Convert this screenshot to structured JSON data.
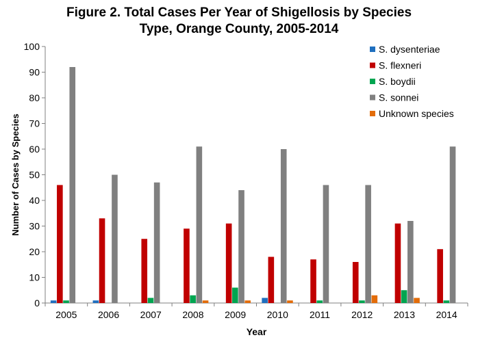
{
  "chart_data": {
    "type": "bar",
    "title": [
      "Figure 2.  Total Cases Per Year of Shigellosis by Species",
      "Type, Orange County, 2005-2014"
    ],
    "xlabel": "Year",
    "ylabel": "Number of Cases by Species",
    "ylim": [
      0,
      100
    ],
    "yticks": [
      0,
      10,
      20,
      30,
      40,
      50,
      60,
      70,
      80,
      90,
      100
    ],
    "grid": false,
    "legend_position": "top-right",
    "categories": [
      "2005",
      "2006",
      "2007",
      "2008",
      "2009",
      "2010",
      "2011",
      "2012",
      "2013",
      "2014"
    ],
    "series": [
      {
        "name": "S. dysenteriae",
        "color": "#1f6fbf",
        "values": [
          1,
          1,
          0,
          0,
          0,
          2,
          0,
          0,
          0,
          0
        ]
      },
      {
        "name": "S. flexneri",
        "color": "#c00000",
        "values": [
          46,
          33,
          25,
          29,
          31,
          18,
          17,
          16,
          31,
          21
        ]
      },
      {
        "name": "S. boydii",
        "color": "#00a550",
        "values": [
          1,
          0,
          2,
          3,
          6,
          0,
          1,
          1,
          5,
          1
        ]
      },
      {
        "name": "S. sonnei",
        "color": "#808080",
        "values": [
          92,
          50,
          47,
          61,
          44,
          60,
          46,
          46,
          32,
          61
        ]
      },
      {
        "name": "Unknown species",
        "color": "#e36c09",
        "values": [
          0,
          0,
          0,
          1,
          1,
          1,
          0,
          3,
          2,
          0
        ]
      }
    ]
  }
}
